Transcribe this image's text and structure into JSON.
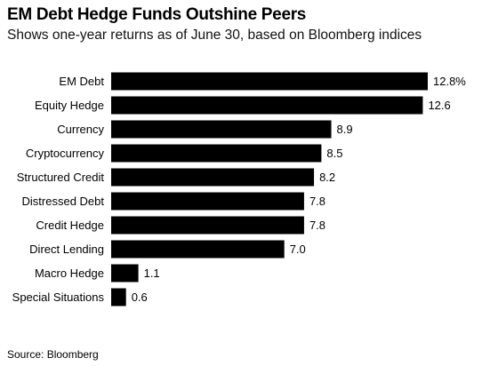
{
  "title": "EM Debt Hedge Funds Outshine Peers",
  "subtitle": "Shows one-year returns as of June 30, based on Bloomberg indices",
  "source": "Source: Bloomberg",
  "chart_data": {
    "type": "bar",
    "orientation": "horizontal",
    "title": "EM Debt Hedge Funds Outshine Peers",
    "subtitle": "Shows one-year returns as of June 30, based on Bloomberg indices",
    "categories": [
      "EM Debt",
      "Equity Hedge",
      "Currency",
      "Cryptocurrency",
      "Structured Credit",
      "Distressed Debt",
      "Credit Hedge",
      "Direct Lending",
      "Macro Hedge",
      "Special Situations"
    ],
    "values": [
      12.8,
      12.6,
      8.9,
      8.5,
      8.2,
      7.8,
      7.8,
      7.0,
      1.1,
      0.6
    ],
    "value_labels": [
      "12.8%",
      "12.6",
      "8.9",
      "8.5",
      "8.2",
      "7.8",
      "7.8",
      "7.0",
      "1.1",
      "0.6"
    ],
    "xlim": [
      0,
      12.8
    ],
    "grid": false,
    "bar_color": "#000000"
  }
}
